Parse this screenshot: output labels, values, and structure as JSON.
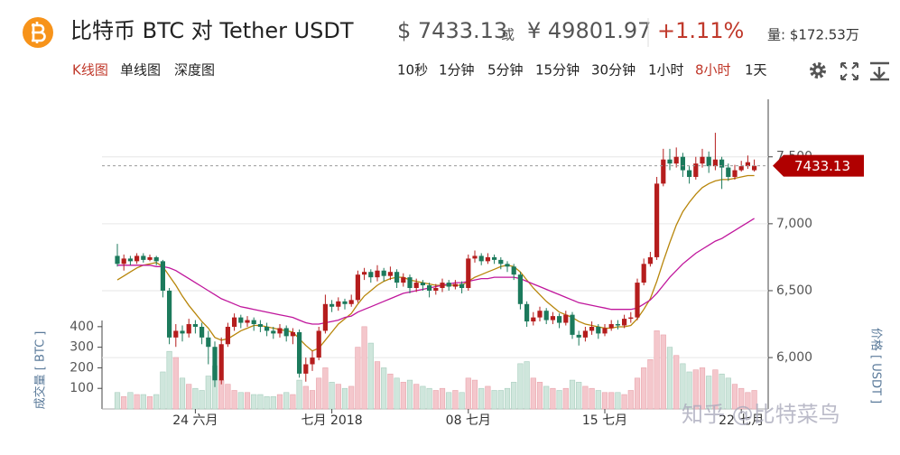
{
  "header": {
    "pair": "比特币 BTC 对 Tether USDT",
    "usd": "$ 7433.13",
    "or": "或",
    "cny": "¥ 49801.97",
    "change": "+1.11%",
    "volume": "量: $172.53万"
  },
  "toolbar": {
    "chart_types": [
      "K线图",
      "单线图",
      "深度图"
    ],
    "active_chart_type": 0,
    "intervals": [
      "10秒",
      "1分钟",
      "5分钟",
      "15分钟",
      "30分钟",
      "1小时",
      "8小时",
      "1天"
    ],
    "active_interval": 6
  },
  "watermark": "知乎 @比特菜鸟",
  "chart_data": {
    "type": "candlestick",
    "categories": [
      null,
      null,
      null,
      null,
      null,
      null,
      null,
      null,
      null,
      null,
      null,
      null,
      "24 六月",
      null,
      null,
      null,
      null,
      null,
      null,
      null,
      null,
      null,
      null,
      null,
      null,
      null,
      null,
      null,
      null,
      null,
      null,
      null,
      null,
      "七月 2018",
      null,
      null,
      null,
      null,
      null,
      null,
      null,
      null,
      null,
      null,
      null,
      null,
      null,
      null,
      null,
      null,
      null,
      null,
      null,
      null,
      "08 七月",
      null,
      null,
      null,
      null,
      null,
      null,
      null,
      null,
      null,
      null,
      null,
      null,
      null,
      null,
      null,
      null,
      null,
      null,
      null,
      null,
      "15 七月",
      null,
      null,
      null,
      null,
      null,
      null,
      null,
      null,
      null,
      null,
      null,
      null,
      null,
      null,
      null,
      null,
      null,
      null,
      null,
      null,
      "22 七月",
      null,
      null
    ],
    "open": [
      6760,
      6700,
      6740,
      6720,
      6760,
      6730,
      6750,
      6720,
      6500,
      6150,
      6200,
      6180,
      6250,
      6230,
      6150,
      6080,
      5830,
      6100,
      6230,
      6300,
      6260,
      6280,
      6250,
      6230,
      6200,
      6180,
      6220,
      6160,
      6190,
      5880,
      5950,
      6000,
      6200,
      6400,
      6380,
      6420,
      6400,
      6430,
      6620,
      6640,
      6600,
      6650,
      6610,
      6640,
      6560,
      6600,
      6520,
      6560,
      6540,
      6500,
      6520,
      6560,
      6530,
      6550,
      6520,
      6740,
      6760,
      6720,
      6750,
      6730,
      6700,
      6680,
      6620,
      6400,
      6270,
      6300,
      6350,
      6280,
      6310,
      6260,
      6320,
      6170,
      6150,
      6200,
      6230,
      6180,
      6220,
      6250,
      6240,
      6290,
      6300,
      6560,
      6700,
      6750,
      7300,
      7480,
      7450,
      7500,
      7400,
      7350,
      7450,
      7500,
      7430,
      7480,
      7420,
      7350,
      7400,
      7430,
      7400
    ],
    "high": [
      6850,
      6770,
      6760,
      6780,
      6780,
      6770,
      6760,
      6730,
      6520,
      6250,
      6240,
      6290,
      6280,
      6260,
      6200,
      6120,
      6150,
      6260,
      6330,
      6320,
      6310,
      6300,
      6280,
      6260,
      6230,
      6250,
      6240,
      6220,
      6210,
      6000,
      6050,
      6230,
      6470,
      6430,
      6450,
      6440,
      6470,
      6650,
      6670,
      6660,
      6690,
      6670,
      6680,
      6660,
      6630,
      6620,
      6590,
      6580,
      6560,
      6550,
      6590,
      6580,
      6580,
      6570,
      6770,
      6800,
      6780,
      6780,
      6770,
      6750,
      6720,
      6700,
      6640,
      6420,
      6340,
      6380,
      6370,
      6340,
      6330,
      6350,
      6340,
      6200,
      6230,
      6270,
      6250,
      6250,
      6280,
      6280,
      6320,
      6340,
      6590,
      6740,
      6790,
      7350,
      7560,
      7560,
      7570,
      7530,
      7430,
      7500,
      7560,
      7540,
      7680,
      7500,
      7450,
      7440,
      7470,
      7510,
      7480
    ],
    "low": [
      6680,
      6650,
      6690,
      6700,
      6710,
      6720,
      6690,
      6450,
      6100,
      6080,
      6120,
      6150,
      6180,
      6100,
      5950,
      5780,
      5800,
      6080,
      6200,
      6220,
      6230,
      6200,
      6190,
      6160,
      6140,
      6150,
      6120,
      6100,
      5850,
      5820,
      5900,
      5980,
      6180,
      6340,
      6350,
      6360,
      6380,
      6410,
      6580,
      6560,
      6570,
      6570,
      6580,
      6520,
      6530,
      6480,
      6490,
      6500,
      6450,
      6470,
      6490,
      6500,
      6510,
      6480,
      6500,
      6710,
      6690,
      6700,
      6700,
      6660,
      6640,
      6580,
      6360,
      6230,
      6240,
      6270,
      6250,
      6250,
      6220,
      6240,
      6140,
      6090,
      6120,
      6170,
      6140,
      6160,
      6200,
      6210,
      6220,
      6260,
      6280,
      6540,
      6680,
      6730,
      7280,
      7400,
      7420,
      7350,
      7300,
      7330,
      7420,
      7380,
      7400,
      7260,
      7320,
      7330,
      7390,
      7410,
      7390
    ],
    "close": [
      6700,
      6740,
      6720,
      6760,
      6730,
      6750,
      6720,
      6500,
      6150,
      6200,
      6180,
      6250,
      6230,
      6150,
      6080,
      5830,
      6100,
      6230,
      6300,
      6260,
      6280,
      6250,
      6230,
      6200,
      6180,
      6220,
      6160,
      6190,
      5880,
      5950,
      6000,
      6200,
      6400,
      6380,
      6420,
      6400,
      6430,
      6620,
      6640,
      6600,
      6650,
      6610,
      6640,
      6560,
      6600,
      6520,
      6560,
      6540,
      6500,
      6520,
      6560,
      6530,
      6550,
      6520,
      6740,
      6760,
      6720,
      6750,
      6730,
      6700,
      6680,
      6620,
      6400,
      6270,
      6300,
      6350,
      6280,
      6310,
      6260,
      6320,
      6170,
      6150,
      6200,
      6230,
      6180,
      6220,
      6250,
      6240,
      6290,
      6300,
      6560,
      6700,
      6750,
      7300,
      7480,
      7450,
      7500,
      7400,
      7350,
      7450,
      7500,
      7430,
      7480,
      7420,
      7350,
      7400,
      7430,
      7460,
      7433
    ],
    "volume": [
      80,
      60,
      80,
      70,
      70,
      60,
      70,
      180,
      280,
      250,
      150,
      120,
      100,
      90,
      160,
      210,
      140,
      120,
      90,
      80,
      80,
      70,
      70,
      60,
      60,
      70,
      80,
      70,
      140,
      110,
      90,
      150,
      200,
      130,
      120,
      100,
      110,
      300,
      400,
      320,
      230,
      200,
      170,
      150,
      130,
      140,
      120,
      110,
      100,
      90,
      100,
      80,
      90,
      80,
      150,
      140,
      100,
      110,
      90,
      90,
      100,
      130,
      220,
      230,
      150,
      130,
      110,
      100,
      90,
      100,
      140,
      130,
      110,
      100,
      90,
      80,
      80,
      80,
      70,
      90,
      150,
      200,
      240,
      380,
      360,
      300,
      260,
      220,
      180,
      190,
      200,
      160,
      190,
      170,
      150,
      120,
      100,
      80,
      90
    ],
    "lines": [
      {
        "color": "#b8860b",
        "values": [
          6580,
          6610,
          6640,
          6670,
          6690,
          6700,
          6710,
          6680,
          6610,
          6540,
          6460,
          6390,
          6330,
          6270,
          6220,
          6150,
          6130,
          6140,
          6170,
          6200,
          6220,
          6240,
          6240,
          6230,
          6220,
          6210,
          6200,
          6190,
          6140,
          6090,
          6050,
          6070,
          6130,
          6190,
          6250,
          6290,
          6330,
          6400,
          6460,
          6500,
          6540,
          6570,
          6590,
          6600,
          6600,
          6580,
          6570,
          6560,
          6550,
          6540,
          6540,
          6540,
          6540,
          6540,
          6570,
          6600,
          6620,
          6640,
          6660,
          6680,
          6690,
          6680,
          6640,
          6580,
          6520,
          6470,
          6420,
          6380,
          6340,
          6320,
          6300,
          6270,
          6250,
          6240,
          6230,
          6220,
          6220,
          6230,
          6230,
          6240,
          6290,
          6360,
          6440,
          6570,
          6720,
          6860,
          6990,
          7090,
          7160,
          7220,
          7270,
          7300,
          7320,
          7330,
          7330,
          7340,
          7350,
          7360,
          7360
        ]
      },
      {
        "color": "#c0169c",
        "values": [
          6690,
          6690,
          6690,
          6690,
          6690,
          6690,
          6680,
          6680,
          6670,
          6650,
          6620,
          6590,
          6560,
          6530,
          6500,
          6470,
          6440,
          6420,
          6400,
          6380,
          6370,
          6360,
          6350,
          6340,
          6330,
          6320,
          6310,
          6300,
          6280,
          6260,
          6250,
          6250,
          6260,
          6270,
          6280,
          6300,
          6310,
          6340,
          6360,
          6380,
          6400,
          6420,
          6440,
          6460,
          6480,
          6490,
          6500,
          6510,
          6520,
          6530,
          6540,
          6550,
          6560,
          6560,
          6570,
          6580,
          6590,
          6590,
          6600,
          6600,
          6600,
          6600,
          6590,
          6570,
          6550,
          6530,
          6510,
          6490,
          6470,
          6450,
          6430,
          6410,
          6400,
          6390,
          6380,
          6370,
          6360,
          6360,
          6360,
          6360,
          6370,
          6400,
          6430,
          6480,
          6540,
          6600,
          6650,
          6700,
          6740,
          6780,
          6810,
          6840,
          6870,
          6890,
          6920,
          6950,
          6980,
          7010,
          7040
        ]
      }
    ],
    "up_color": "#b51d1d",
    "down_color": "#1c7a5c",
    "up_volume_color": "#f4c7cc",
    "down_volume_color": "#cfe6dc",
    "ylim": [
      5670,
      7930
    ],
    "yticks": [
      {
        "value": 6000,
        "label": "6,000"
      },
      {
        "value": 6500,
        "label": "6,500"
      },
      {
        "value": 7000,
        "label": "7,000"
      },
      {
        "value": 7500,
        "label": "7,500"
      }
    ],
    "ylabel": "价格 [ USDT ]",
    "y2lim": [
      0,
      430
    ],
    "y2ticks": [
      100,
      200,
      300,
      400
    ],
    "y2label": "成交量 [ BTC ]",
    "grid": true,
    "last_price": 7433.13,
    "last_price_color": "#b00000"
  }
}
